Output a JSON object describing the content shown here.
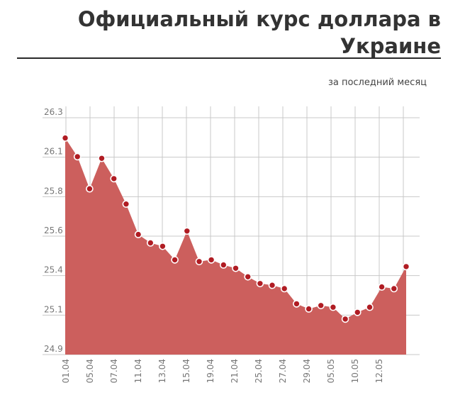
{
  "page": {
    "title": "Официальный курс доллара в Украине",
    "subtitle": "за последний месяц"
  },
  "colors": {
    "area_fill": "#cc5f5d",
    "marker_fill": "#b01c23",
    "marker_stroke": "#ffffff",
    "grid": "#c8c8c8",
    "text": "#333333"
  },
  "chart_data": {
    "type": "area",
    "title": "Официальный курс доллара в Украине",
    "subtitle": "за последний месяц",
    "xlabel": "",
    "ylabel": "",
    "ylim": [
      24.9,
      26.3
    ],
    "y_ticks": [
      "26.3",
      "26.1",
      "25.8",
      "25.6",
      "25.4",
      "25.1",
      "24.9"
    ],
    "x_tick_labels": [
      "01.04",
      "05.04",
      "07.04",
      "11.04",
      "13.04",
      "15.04",
      "19.04",
      "21.04",
      "25.04",
      "27.04",
      "29.04",
      "05.05",
      "10.05",
      "12.05"
    ],
    "grid": true,
    "legend": "none",
    "series": [
      {
        "values": [
          26.18,
          26.07,
          25.88,
          26.06,
          25.94,
          25.79,
          25.61,
          25.56,
          25.54,
          25.46,
          25.63,
          25.45,
          25.46,
          25.43,
          25.41,
          25.36,
          25.32,
          25.31,
          25.29,
          25.2,
          25.17,
          25.19,
          25.18,
          25.11,
          25.15,
          25.18,
          25.3,
          25.29,
          25.42
        ]
      }
    ]
  }
}
